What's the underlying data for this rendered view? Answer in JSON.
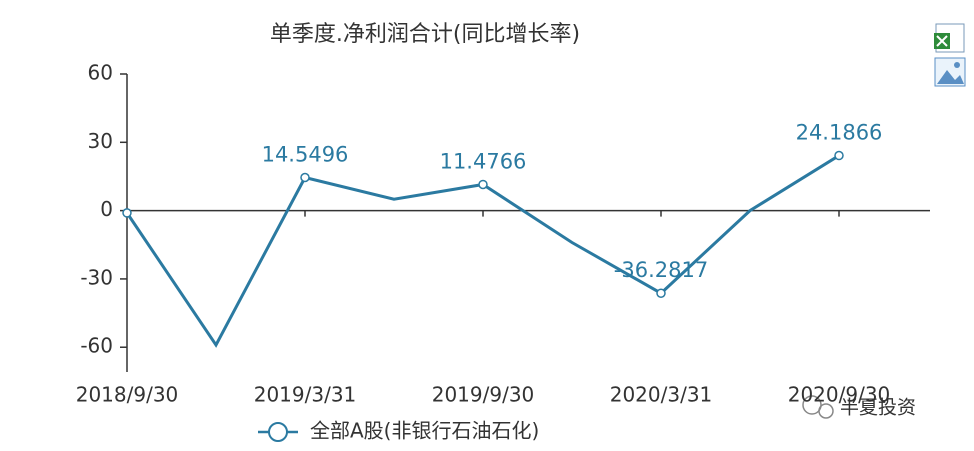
{
  "chart_data": {
    "type": "line",
    "title": "单季度.净利润合计(同比增长率)",
    "categories": [
      "2018/9/30",
      null,
      "2019/3/31",
      null,
      "2019/9/30",
      null,
      "2020/3/31",
      null,
      "2020/9/30"
    ],
    "series": [
      {
        "name": "全部A股(非银行石油石化)",
        "color": "#2b7aa1",
        "values": [
          -1,
          -59,
          14.5496,
          5,
          11.4766,
          -14,
          -36.2817,
          0,
          24.1866
        ],
        "value_labels": [
          null,
          null,
          "14.5496",
          null,
          "11.4766",
          null,
          "-36.2817",
          null,
          "24.1866"
        ]
      }
    ],
    "ylim": [
      -70,
      60
    ],
    "yticks": [
      60,
      30,
      0,
      -30,
      -60
    ],
    "legend": "bottom",
    "watermark": "半夏投资"
  }
}
